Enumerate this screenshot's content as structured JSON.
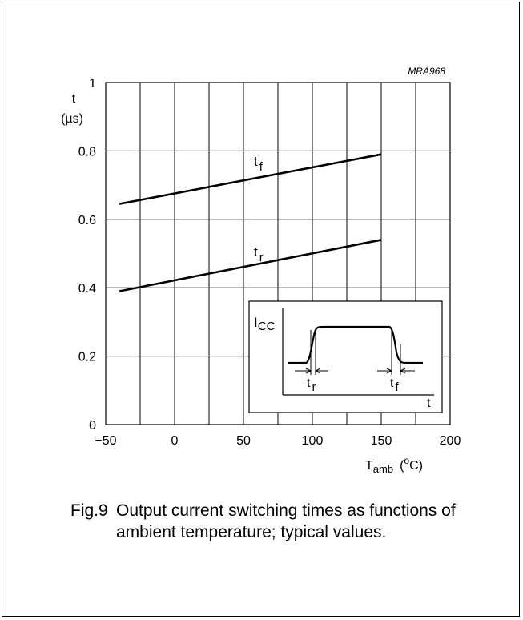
{
  "chart_data": {
    "type": "line",
    "code": "MRA968",
    "ylabel": "t",
    "yunit": "(µs)",
    "xlabel": "T",
    "xlabel_sub": "amb",
    "xunit_pre": "(",
    "xunit_sup": "o",
    "xunit_post": "C)",
    "xlim": [
      -50,
      200
    ],
    "ylim": [
      0,
      1
    ],
    "xticks": [
      "−50",
      "0",
      "50",
      "100",
      "150",
      "200"
    ],
    "xtick_values": [
      -50,
      0,
      50,
      100,
      150,
      200
    ],
    "yticks": [
      "0",
      "0.2",
      "0.4",
      "0.6",
      "0.8",
      "1"
    ],
    "ytick_values": [
      0,
      0.2,
      0.4,
      0.6,
      0.8,
      1.0
    ],
    "grid": true,
    "series": [
      {
        "name": "t",
        "sub": "f",
        "x": [
          -40,
          150
        ],
        "y": [
          0.645,
          0.79
        ]
      },
      {
        "name": "t",
        "sub": "r",
        "x": [
          -40,
          150
        ],
        "y": [
          0.39,
          0.54
        ]
      }
    ],
    "inset": {
      "ylabel": "I",
      "ylabel_sub": "CC",
      "xlabel": "t",
      "mark_r": "t",
      "mark_r_sub": "r",
      "mark_f": "t",
      "mark_f_sub": "f"
    }
  },
  "caption": {
    "number": "Fig.9",
    "text": "Output current switching times as functions of ambient temperature; typical values."
  }
}
